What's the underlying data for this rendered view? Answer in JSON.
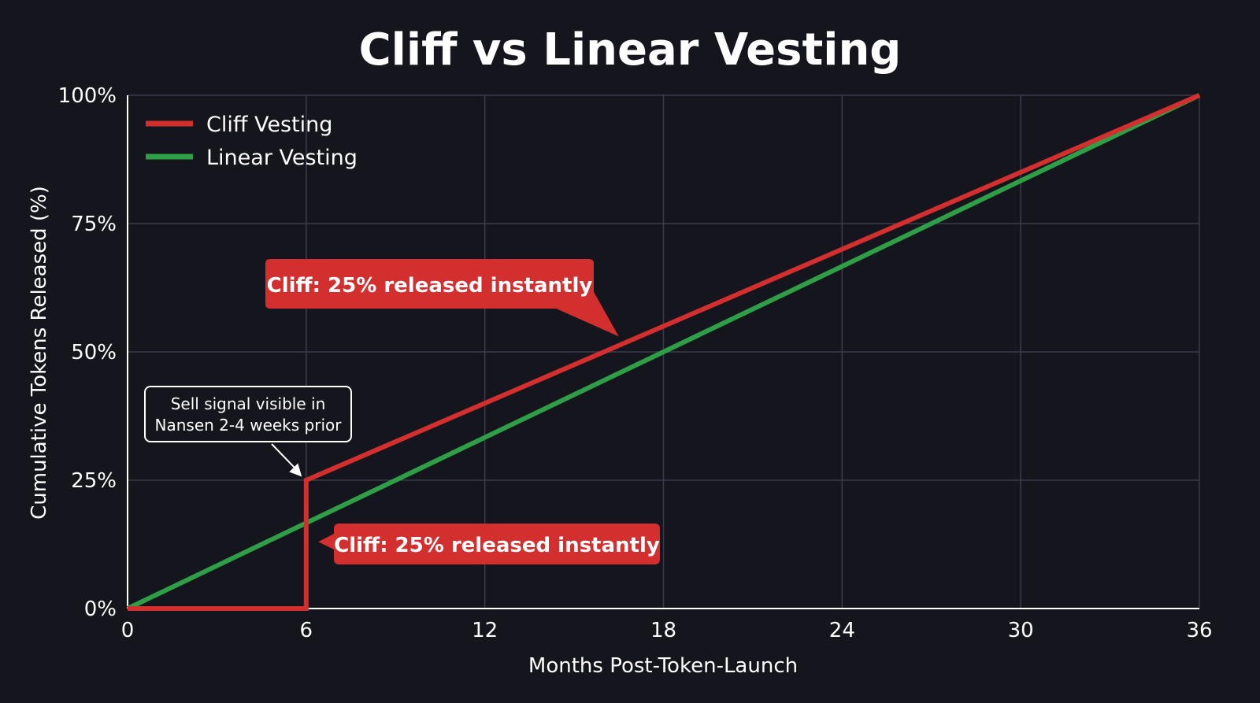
{
  "chart_data": {
    "type": "line",
    "title": "Cliff vs Linear Vesting",
    "xlabel": "Months Post-Token-Launch",
    "ylabel": "Cumulative Tokens Released (%)",
    "xlim": [
      0,
      36
    ],
    "ylim": [
      0,
      100
    ],
    "xticks": [
      "0",
      "6",
      "12",
      "18",
      "24",
      "30",
      "36"
    ],
    "yticks": [
      "0%",
      "25%",
      "50%",
      "75%",
      "100%"
    ],
    "grid": true,
    "legend_position": "top-left",
    "series": [
      {
        "name": "Cliff Vesting",
        "color": "#d32f2f",
        "points": [
          [
            0,
            0
          ],
          [
            6,
            0
          ],
          [
            6,
            25
          ],
          [
            36,
            100
          ]
        ]
      },
      {
        "name": "Linear Vesting",
        "color": "#2e9e47",
        "points": [
          [
            0,
            0
          ],
          [
            36,
            100
          ]
        ]
      }
    ],
    "annotations": [
      {
        "text": "Cliff: 25% released instantly",
        "style": "red-callout",
        "target": [
          16.5,
          53
        ]
      },
      {
        "text": "Cliff: 25% released instantly",
        "style": "red-callout",
        "target": [
          6.3,
          13
        ]
      },
      {
        "text": "Sell signal visible in\nNansen 2-4 weeks prior",
        "style": "outlined-box",
        "target": [
          5.8,
          26
        ]
      }
    ]
  }
}
